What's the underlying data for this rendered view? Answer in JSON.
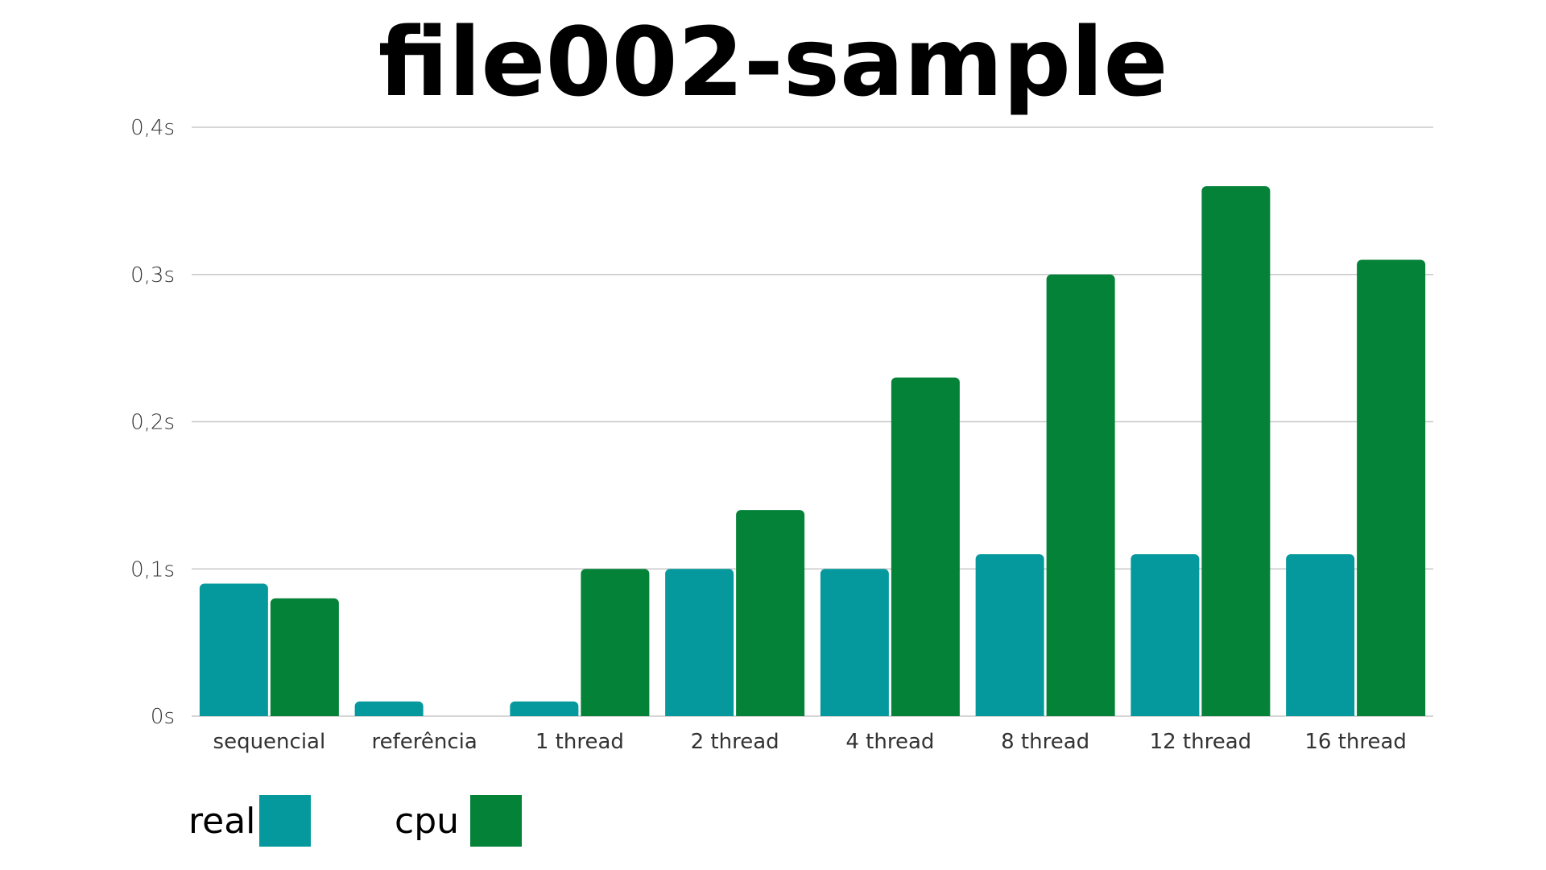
{
  "chart_data": {
    "type": "bar",
    "title": "file002-sample",
    "categories": [
      "sequencial",
      "referência",
      "1 thread",
      "2 thread",
      "4 thread",
      "8 thread",
      "12 thread",
      "16 thread"
    ],
    "series": [
      {
        "name": "real",
        "color": "#05999e",
        "values": [
          0.09,
          0.01,
          0.01,
          0.1,
          0.1,
          0.11,
          0.11,
          0.11
        ]
      },
      {
        "name": "cpu",
        "color": "#038238",
        "values": [
          0.08,
          0,
          0.1,
          0.14,
          0.23,
          0.3,
          0.36,
          0.31
        ]
      }
    ],
    "ylim": [
      0,
      0.4
    ],
    "yticks": [
      {
        "value": 0,
        "label": "0s"
      },
      {
        "value": 0.1,
        "label": "0,1s"
      },
      {
        "value": 0.2,
        "label": "0,2s"
      },
      {
        "value": 0.3,
        "label": "0,3s"
      },
      {
        "value": 0.4,
        "label": "0,4s"
      }
    ],
    "grid": true,
    "legend_position": "bottom-left"
  }
}
